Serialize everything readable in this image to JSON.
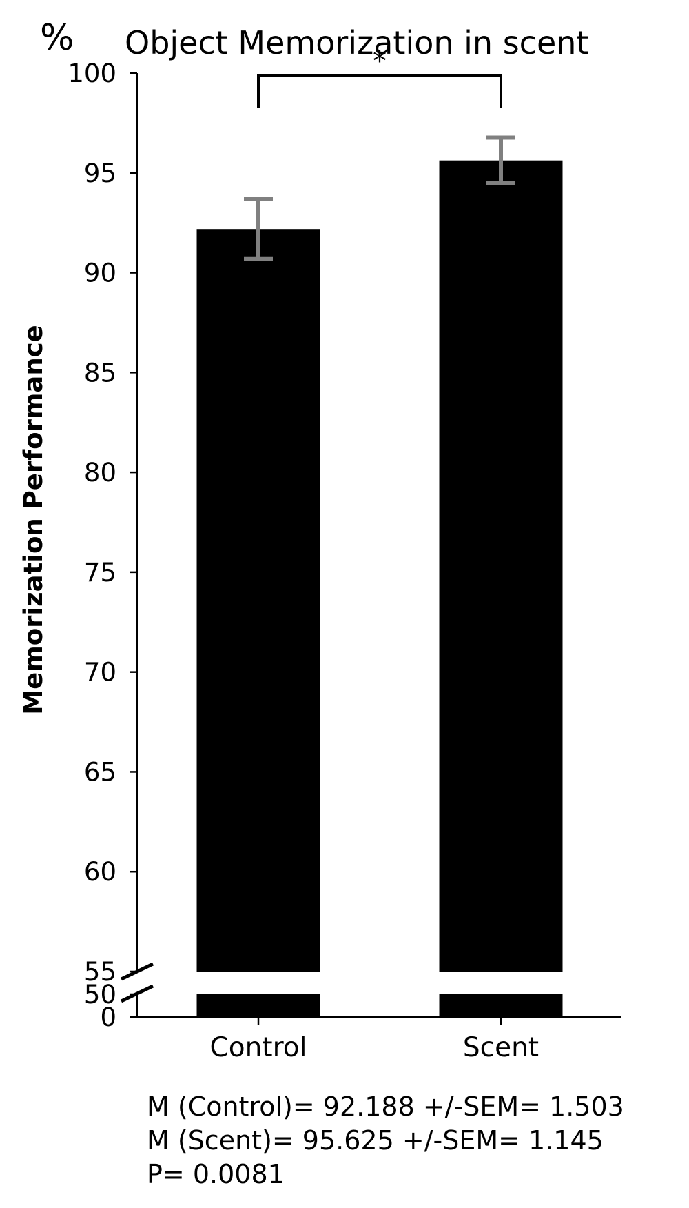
{
  "chart_data": {
    "type": "bar",
    "title": "Object Memorization in scent",
    "unit_label": "%",
    "ylabel": "Memorization Performance",
    "xlabel": "",
    "categories": [
      "Control",
      "Scent"
    ],
    "values": [
      92.188,
      95.625
    ],
    "errors": [
      1.503,
      1.145
    ],
    "ylim": [
      55,
      100
    ],
    "y_ticks": [
      55,
      60,
      65,
      70,
      75,
      80,
      85,
      90,
      95,
      100
    ],
    "broken_axis": {
      "lower_ticks": [
        0,
        50
      ],
      "break_between": [
        50,
        55
      ]
    },
    "significance": {
      "pair": [
        "Control",
        "Scent"
      ],
      "label": "*"
    },
    "bar_color": "#000000",
    "error_bar_color": "#808080",
    "grid": false,
    "legend": "none",
    "annotations": [
      "M (Control)= 92.188 +/-SEM= 1.503",
      "M (Scent)= 95.625 +/-SEM= 1.145",
      "P= 0.0081"
    ]
  }
}
